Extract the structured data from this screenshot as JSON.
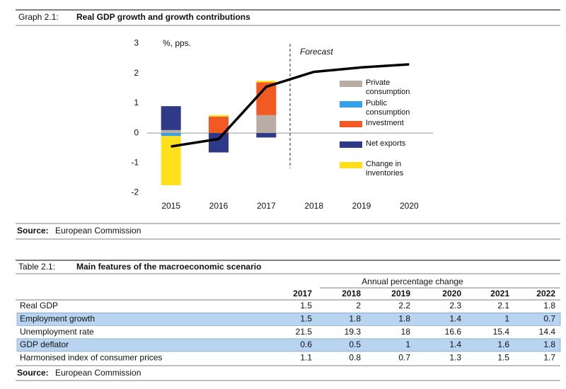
{
  "graph": {
    "label": "Graph 2.1:",
    "title": "Real GDP growth and growth contributions",
    "source_label": "Source:",
    "source": "European Commission"
  },
  "chart_data": {
    "type": "bar",
    "stacked": true,
    "y_label": "%, pps.",
    "annotation": "Forecast",
    "categories": [
      "2015",
      "2016",
      "2017",
      "2018",
      "2019",
      "2020"
    ],
    "series": [
      {
        "name": "Private consumption",
        "color": "#b8aca4",
        "values": [
          0.1,
          0,
          0.6,
          null,
          null,
          null
        ]
      },
      {
        "name": "Public consumption",
        "color": "#33a0e8",
        "values": [
          -0.1,
          0,
          0,
          null,
          null,
          null
        ]
      },
      {
        "name": "Investment",
        "color": "#f15a22",
        "values": [
          0,
          0.55,
          1.1,
          null,
          null,
          null
        ]
      },
      {
        "name": "Net exports",
        "color": "#2e3a87",
        "values": [
          0.8,
          -0.65,
          -0.15,
          null,
          null,
          null
        ]
      },
      {
        "name": "Change in inventories",
        "color": "#ffe01b",
        "values": [
          -1.65,
          0.05,
          0.05,
          null,
          null,
          null
        ]
      }
    ],
    "line": {
      "color": "#000000",
      "values": [
        -0.45,
        -0.2,
        1.55,
        2.05,
        2.2,
        2.3
      ]
    },
    "ylim": [
      -2,
      3
    ],
    "yticks": [
      -2,
      -1,
      0,
      1,
      2,
      3
    ]
  },
  "table": {
    "label": "Table 2.1:",
    "title": "Main features of the macroeconomic scenario",
    "column_group": "Annual percentage change",
    "columns": [
      "2017",
      "2018",
      "2019",
      "2020",
      "2021",
      "2022"
    ],
    "rows": [
      {
        "label": "Real GDP",
        "values": [
          1.5,
          2,
          2.2,
          2.3,
          2.1,
          1.8
        ],
        "highlight": false
      },
      {
        "label": "Employment growth",
        "values": [
          1.5,
          1.8,
          1.8,
          1.4,
          1,
          0.7
        ],
        "highlight": true
      },
      {
        "label": "Unemployment rate",
        "values": [
          21.5,
          19.3,
          18,
          16.6,
          15.4,
          14.4
        ],
        "highlight": false
      },
      {
        "label": "GDP deflator",
        "values": [
          0.6,
          0.5,
          1,
          1.4,
          1.6,
          1.8
        ],
        "highlight": true
      },
      {
        "label": "Harmonised index of consumer prices",
        "values": [
          1.1,
          0.8,
          0.7,
          1.3,
          1.5,
          1.7
        ],
        "highlight": false
      }
    ],
    "source_label": "Source:",
    "source": "European Commission"
  }
}
